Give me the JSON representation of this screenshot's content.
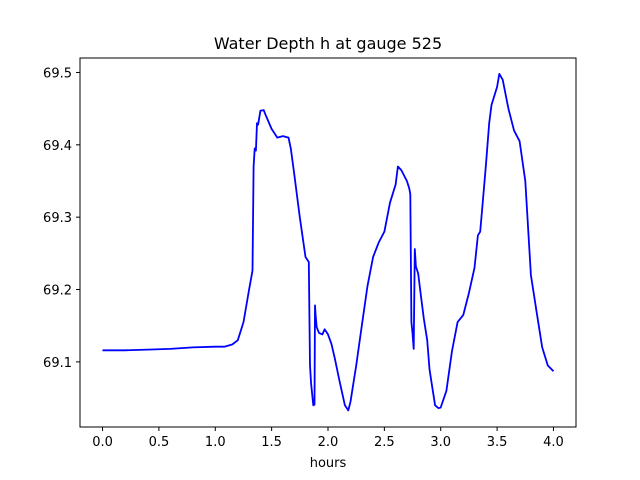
{
  "chart_data": {
    "type": "line",
    "title": "Water Depth h at gauge 525",
    "xlabel": "hours",
    "ylabel": "",
    "xlim": [
      -0.2,
      4.2
    ],
    "ylim": [
      69.01,
      69.52
    ],
    "x_ticks": [
      {
        "value": 0.0,
        "label": "0.0"
      },
      {
        "value": 0.5,
        "label": "0.5"
      },
      {
        "value": 1.0,
        "label": "1.0"
      },
      {
        "value": 1.5,
        "label": "1.5"
      },
      {
        "value": 2.0,
        "label": "2.0"
      },
      {
        "value": 2.5,
        "label": "2.5"
      },
      {
        "value": 3.0,
        "label": "3.0"
      },
      {
        "value": 3.5,
        "label": "3.5"
      },
      {
        "value": 4.0,
        "label": "4.0"
      }
    ],
    "y_ticks": [
      {
        "value": 69.1,
        "label": "69.1"
      },
      {
        "value": 69.2,
        "label": "69.2"
      },
      {
        "value": 69.3,
        "label": "69.3"
      },
      {
        "value": 69.4,
        "label": "69.4"
      },
      {
        "value": 69.5,
        "label": "69.5"
      }
    ],
    "grid": false,
    "series": [
      {
        "color": "#0000ff",
        "x": [
          0.0,
          0.2,
          0.4,
          0.6,
          0.8,
          1.0,
          1.08,
          1.15,
          1.2,
          1.25,
          1.3,
          1.33,
          1.34,
          1.35,
          1.36,
          1.37,
          1.38,
          1.4,
          1.43,
          1.45,
          1.5,
          1.55,
          1.6,
          1.65,
          1.67,
          1.7,
          1.75,
          1.8,
          1.83,
          1.84,
          1.85,
          1.87,
          1.88,
          1.885,
          1.89,
          1.9,
          1.92,
          1.95,
          1.97,
          2.0,
          2.03,
          2.06,
          2.1,
          2.15,
          2.18,
          2.2,
          2.25,
          2.3,
          2.35,
          2.4,
          2.45,
          2.5,
          2.55,
          2.6,
          2.62,
          2.65,
          2.7,
          2.72,
          2.73,
          2.74,
          2.75,
          2.76,
          2.77,
          2.78,
          2.8,
          2.82,
          2.85,
          2.88,
          2.9,
          2.92,
          2.95,
          2.98,
          3.0,
          3.05,
          3.1,
          3.15,
          3.2,
          3.25,
          3.3,
          3.33,
          3.35,
          3.37,
          3.4,
          3.43,
          3.45,
          3.5,
          3.52,
          3.55,
          3.6,
          3.65,
          3.7,
          3.75,
          3.8,
          3.85,
          3.9,
          3.95,
          4.0
        ],
        "y": [
          69.116,
          69.116,
          69.117,
          69.118,
          69.12,
          69.121,
          69.121,
          69.124,
          69.13,
          69.155,
          69.2,
          69.226,
          69.37,
          69.395,
          69.392,
          69.43,
          69.428,
          69.447,
          69.448,
          69.44,
          69.422,
          69.41,
          69.412,
          69.41,
          69.395,
          69.36,
          69.3,
          69.245,
          69.238,
          69.095,
          69.07,
          69.04,
          69.041,
          69.178,
          69.165,
          69.148,
          69.14,
          69.138,
          69.145,
          69.138,
          69.125,
          69.105,
          69.075,
          69.04,
          69.033,
          69.045,
          69.095,
          69.15,
          69.205,
          69.245,
          69.265,
          69.28,
          69.32,
          69.345,
          69.37,
          69.365,
          69.35,
          69.34,
          69.332,
          69.155,
          69.14,
          69.118,
          69.256,
          69.232,
          69.222,
          69.197,
          69.16,
          69.13,
          69.09,
          69.07,
          69.04,
          69.036,
          69.037,
          69.06,
          69.115,
          69.155,
          69.165,
          69.195,
          69.23,
          69.275,
          69.28,
          69.315,
          69.37,
          69.43,
          69.455,
          69.48,
          69.498,
          69.49,
          69.45,
          69.42,
          69.405,
          69.35,
          69.22,
          69.17,
          69.12,
          69.095,
          69.087
        ]
      }
    ]
  }
}
